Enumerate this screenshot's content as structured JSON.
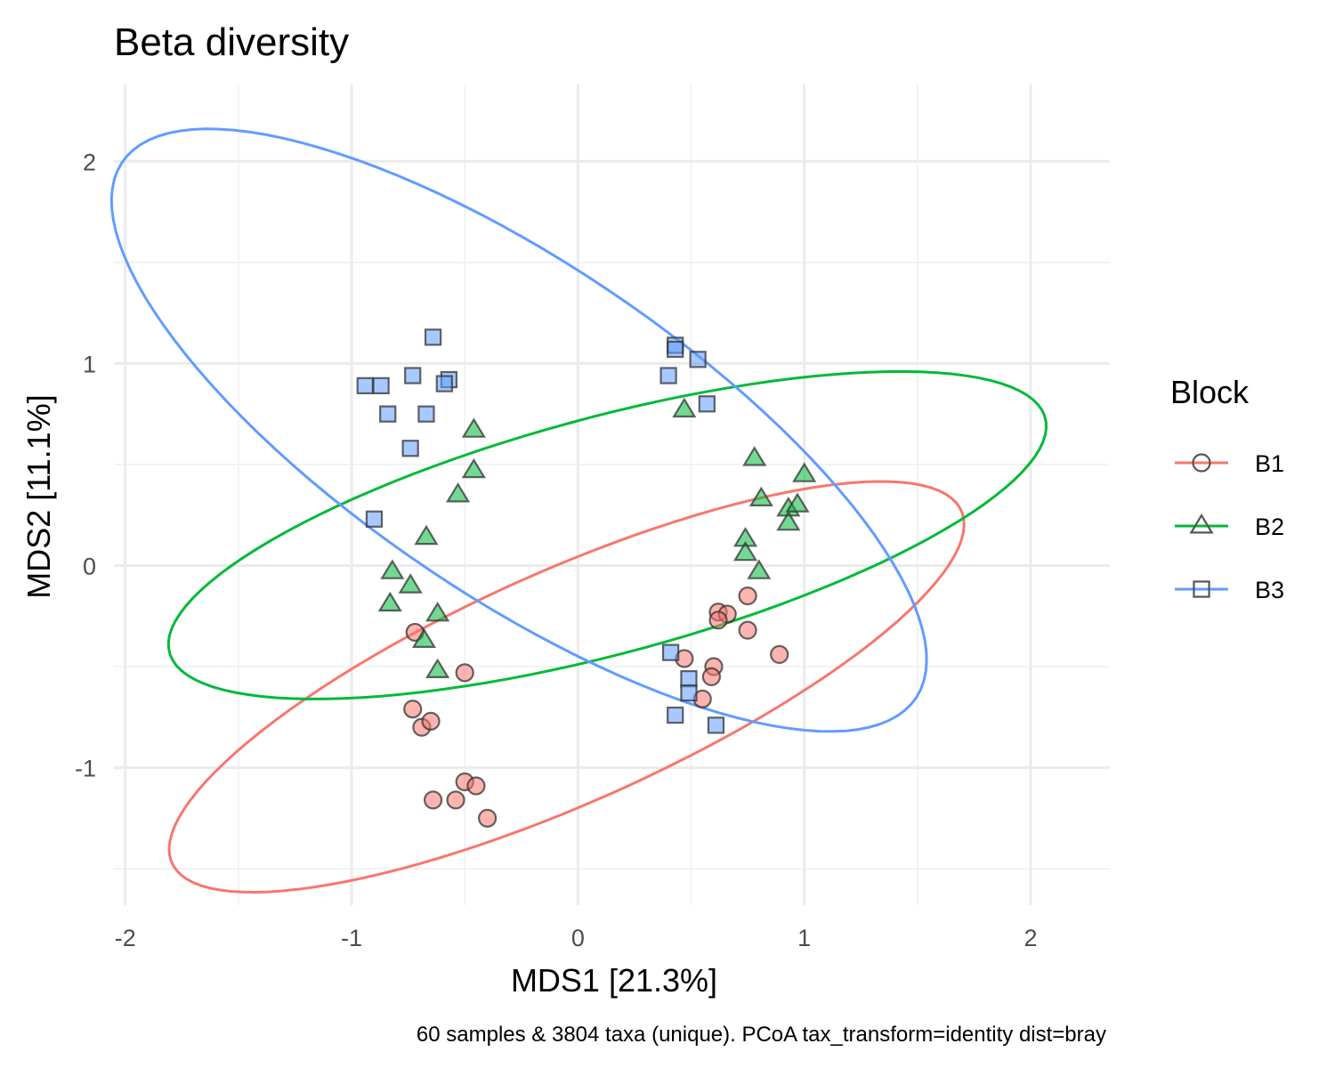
{
  "chart_data": {
    "type": "scatter",
    "title": "Beta diversity",
    "xlabel": "MDS1 [21.3%]",
    "ylabel": "MDS2 [11.1%]",
    "caption": "60 samples & 3804 taxa (unique). PCoA tax_transform=identity dist=bray",
    "xlim": [
      -2.05,
      2.35
    ],
    "ylim": [
      -1.68,
      2.38
    ],
    "xticks": [
      -2,
      -1,
      0,
      1,
      2
    ],
    "xtick_labels": [
      "-2",
      "-1",
      "0",
      "1",
      "2"
    ],
    "yticks": [
      -1,
      0,
      1,
      2
    ],
    "ytick_labels": [
      "-1",
      "0",
      "1",
      "2"
    ],
    "grid": true,
    "legend": {
      "title": "Block",
      "position": "right"
    },
    "series": [
      {
        "name": "B1",
        "color": "#F8766D",
        "shape": "circle",
        "points": [
          [
            -0.72,
            -0.33
          ],
          [
            -0.5,
            -0.53
          ],
          [
            -0.73,
            -0.71
          ],
          [
            -0.69,
            -0.8
          ],
          [
            -0.65,
            -0.77
          ],
          [
            -0.5,
            -1.07
          ],
          [
            -0.45,
            -1.09
          ],
          [
            -0.54,
            -1.16
          ],
          [
            -0.64,
            -1.16
          ],
          [
            -0.4,
            -1.25
          ],
          [
            0.47,
            -0.46
          ],
          [
            0.6,
            -0.5
          ],
          [
            0.59,
            -0.55
          ],
          [
            0.55,
            -0.66
          ],
          [
            0.62,
            -0.23
          ],
          [
            0.66,
            -0.24
          ],
          [
            0.62,
            -0.27
          ],
          [
            0.75,
            -0.15
          ],
          [
            0.75,
            -0.32
          ],
          [
            0.89,
            -0.44
          ]
        ],
        "ellipse": {
          "cx": -0.05,
          "cy": -0.6,
          "a": 1.95,
          "b": 0.56,
          "angle_deg": 27
        }
      },
      {
        "name": "B2",
        "color": "#00BA38",
        "shape": "triangle",
        "points": [
          [
            -0.46,
            0.67
          ],
          [
            -0.46,
            0.47
          ],
          [
            -0.53,
            0.35
          ],
          [
            -0.67,
            0.14
          ],
          [
            -0.82,
            -0.03
          ],
          [
            -0.74,
            -0.1
          ],
          [
            -0.83,
            -0.19
          ],
          [
            -0.62,
            -0.24
          ],
          [
            -0.68,
            -0.37
          ],
          [
            -0.62,
            -0.52
          ],
          [
            0.47,
            0.77
          ],
          [
            0.78,
            0.53
          ],
          [
            0.81,
            0.33
          ],
          [
            0.93,
            0.28
          ],
          [
            0.97,
            0.3
          ],
          [
            1.0,
            0.45
          ],
          [
            0.93,
            0.21
          ],
          [
            0.74,
            0.13
          ],
          [
            0.74,
            0.06
          ],
          [
            0.8,
            -0.03
          ]
        ],
        "ellipse": {
          "cx": 0.13,
          "cy": 0.15,
          "a": 2.02,
          "b": 0.58,
          "angle_deg": 17
        }
      },
      {
        "name": "B3",
        "color": "#619CFF",
        "shape": "square",
        "points": [
          [
            -0.64,
            1.13
          ],
          [
            -0.73,
            0.94
          ],
          [
            -0.57,
            0.92
          ],
          [
            -0.59,
            0.9
          ],
          [
            -0.94,
            0.89
          ],
          [
            -0.87,
            0.89
          ],
          [
            -0.84,
            0.75
          ],
          [
            -0.67,
            0.75
          ],
          [
            -0.74,
            0.58
          ],
          [
            -0.9,
            0.23
          ],
          [
            0.43,
            1.09
          ],
          [
            0.43,
            1.07
          ],
          [
            0.53,
            1.02
          ],
          [
            0.4,
            0.94
          ],
          [
            0.57,
            0.8
          ],
          [
            0.41,
            -0.43
          ],
          [
            0.49,
            -0.56
          ],
          [
            0.49,
            -0.63
          ],
          [
            0.43,
            -0.74
          ],
          [
            0.61,
            -0.79
          ]
        ],
        "ellipse": {
          "cx": -0.26,
          "cy": 0.67,
          "a": 2.2,
          "b": 0.79,
          "angle_deg": -38
        }
      }
    ]
  }
}
